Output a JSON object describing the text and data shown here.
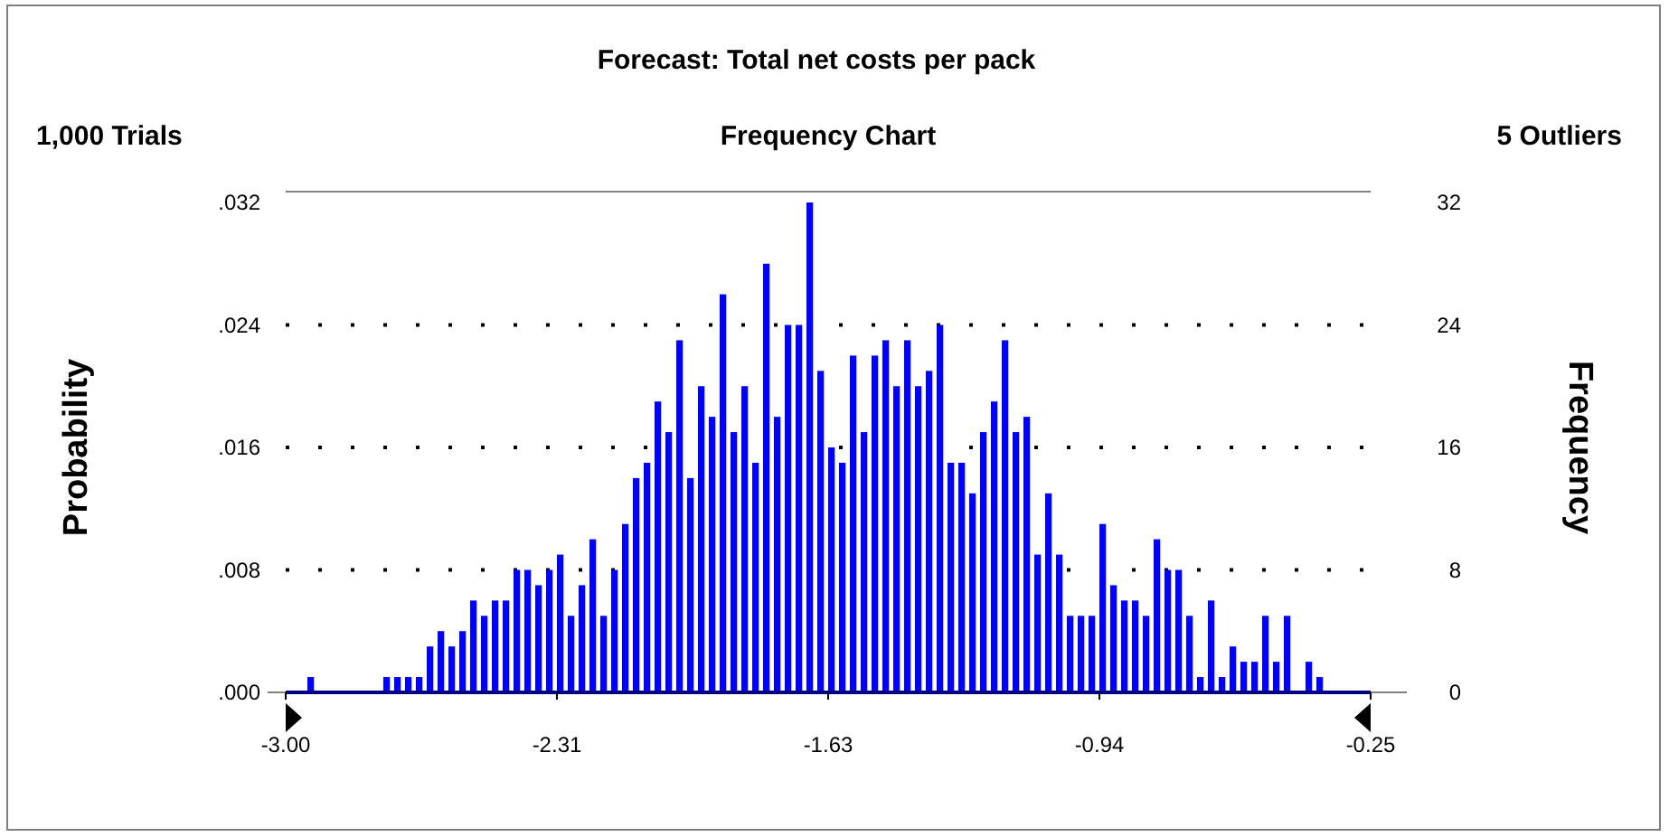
{
  "chart_data": {
    "type": "histogram",
    "title": "Forecast: Total net costs per pack",
    "subtitle": "Frequency Chart",
    "annotations": [
      "1,000 Trials",
      "5 Outliers"
    ],
    "ylabel": "Probability",
    "y2label": "Frequency",
    "bins": [
      -3,
      -2.9725,
      -2.945,
      -2.9175,
      -2.89,
      -2.8625,
      -2.835,
      -2.8075,
      -2.78,
      -2.7525,
      -2.725,
      -2.6975,
      -2.67,
      -2.6425,
      -2.615,
      -2.5875,
      -2.56,
      -2.5325,
      -2.505,
      -2.4775,
      -2.45,
      -2.4225,
      -2.395,
      -2.3675,
      -2.34,
      -2.3125,
      -2.285,
      -2.2575,
      -2.23,
      -2.2025,
      -2.175,
      -2.1475,
      -2.12,
      -2.0925,
      -2.065,
      -2.0375,
      -2.01,
      -1.9825,
      -1.955,
      -1.9275,
      -1.9,
      -1.8725,
      -1.845,
      -1.8175,
      -1.79,
      -1.7625,
      -1.735,
      -1.7075,
      -1.68,
      -1.6525,
      -1.625,
      -1.5975,
      -1.57,
      -1.5425,
      -1.515,
      -1.4875,
      -1.46,
      -1.4325,
      -1.405,
      -1.3775,
      -1.35,
      -1.3225,
      -1.295,
      -1.2675,
      -1.24,
      -1.2125,
      -1.185,
      -1.1575,
      -1.13,
      -1.1025,
      -1.075,
      -1.0475,
      -1.02,
      -0.9925,
      -0.965,
      -0.9375,
      -0.91,
      -0.8825,
      -0.855,
      -0.8275,
      -0.8,
      -0.7725,
      -0.745,
      -0.7175,
      -0.69,
      -0.6625,
      -0.635,
      -0.6075,
      -0.58,
      -0.5525,
      -0.525,
      -0.4975,
      -0.47,
      -0.4425,
      -0.415,
      -0.3875,
      -0.36,
      -0.3325,
      -0.305,
      -0.2775,
      -0.25
    ],
    "series": [
      {
        "color": "#0000ff",
        "axis": "y2",
        "values": [
          0,
          0,
          1,
          0,
          0,
          0,
          0,
          0,
          0,
          1,
          1,
          1,
          1,
          3,
          4,
          3,
          4,
          6,
          5,
          6,
          6,
          8,
          8,
          7,
          8,
          9,
          5,
          7,
          10,
          5,
          8,
          11,
          14,
          15,
          19,
          17,
          23,
          14,
          20,
          18,
          26,
          17,
          20,
          15,
          28,
          18,
          24,
          24,
          32,
          21,
          16,
          15,
          22,
          17,
          22,
          23,
          20,
          23,
          20,
          21,
          24,
          15,
          15,
          13,
          17,
          19,
          23,
          17,
          18,
          9,
          13,
          9,
          5,
          5,
          5,
          11,
          7,
          6,
          6,
          5,
          10,
          8,
          8,
          5,
          1,
          6,
          1,
          3,
          2,
          2,
          5,
          2,
          5,
          0,
          2,
          1,
          0,
          0,
          0,
          0
        ]
      }
    ],
    "xlim": [
      -3,
      -0.25
    ],
    "xticks": [
      {
        "value": -3,
        "label": "-3.00"
      },
      {
        "value": -2.3125,
        "label": "-2.31"
      },
      {
        "value": -1.625,
        "label": "-1.63"
      },
      {
        "value": -0.9375,
        "label": "-0.94"
      },
      {
        "value": -0.25,
        "label": "-0.25"
      }
    ],
    "ylim": [
      0,
      0.032
    ],
    "yticks": [
      {
        "value": 0,
        "label": ".000"
      },
      {
        "value": 0.008,
        "label": ".008"
      },
      {
        "value": 0.016,
        "label": ".016"
      },
      {
        "value": 0.024,
        "label": ".024"
      },
      {
        "value": 0.032,
        "label": ".032"
      }
    ],
    "y2lim": [
      0,
      32
    ],
    "y2ticks": [
      0,
      8,
      16,
      24,
      32
    ],
    "grid": "y"
  }
}
